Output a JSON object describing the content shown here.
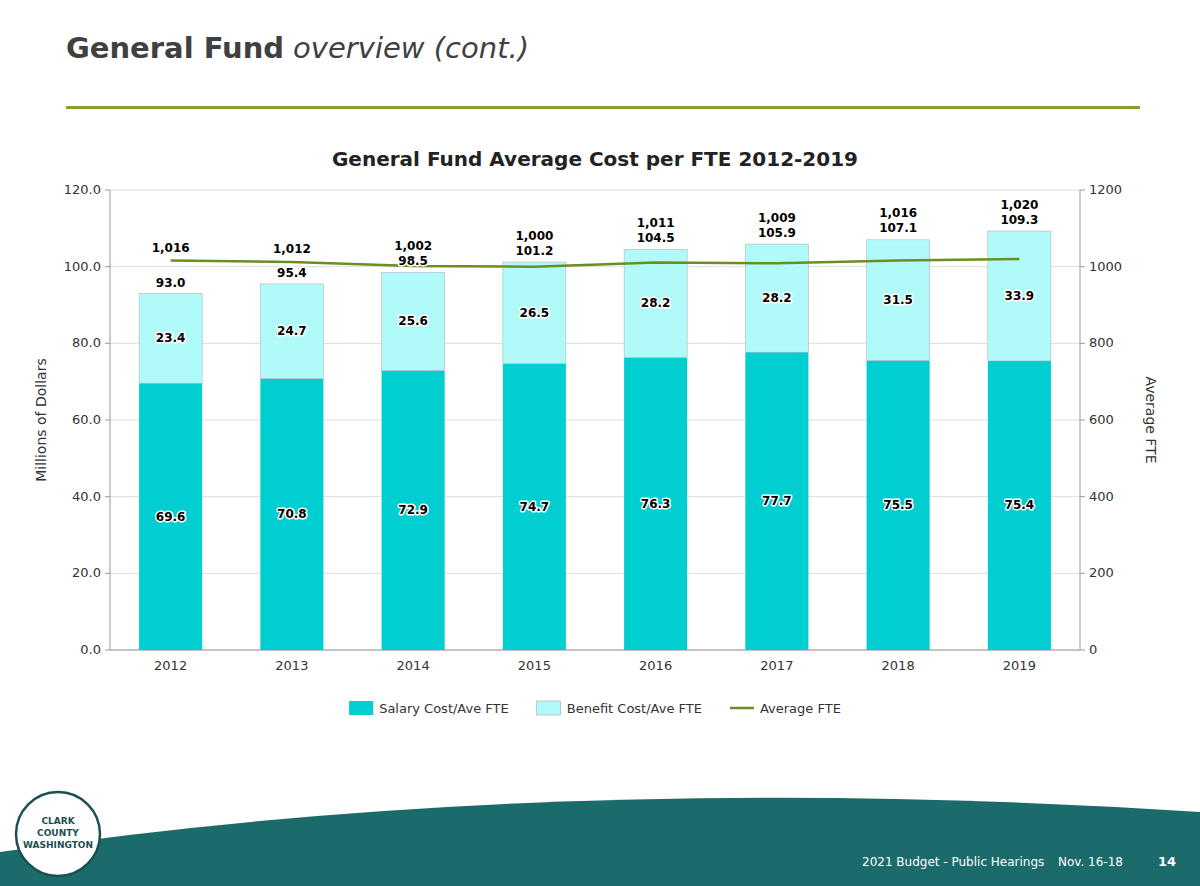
{
  "chart_data": {
    "type": "bar",
    "title": "General Fund Average Cost per FTE 2012-2019",
    "categories": [
      "2012",
      "2013",
      "2014",
      "2015",
      "2016",
      "2017",
      "2018",
      "2019"
    ],
    "stacked": true,
    "grid": true,
    "legend": "bottom",
    "data_labels": true,
    "ylabel": "Millions of Dollars",
    "y2label": "Average FTE",
    "ylim": [
      0,
      120
    ],
    "yticks": [
      {
        "value": 0,
        "label": "0.0"
      },
      {
        "value": 20,
        "label": "20.0"
      },
      {
        "value": 40,
        "label": "40.0"
      },
      {
        "value": 60,
        "label": "60.0"
      },
      {
        "value": 80,
        "label": "80.0"
      },
      {
        "value": 100,
        "label": "100.0"
      },
      {
        "value": 120,
        "label": "120.0"
      }
    ],
    "y2lim": [
      0,
      1200
    ],
    "y2ticks": [
      0,
      200,
      400,
      600,
      800,
      1000,
      1200
    ],
    "series": [
      {
        "name": "Salary Cost/Ave FTE",
        "type": "bar",
        "color": "#00CED1",
        "values": [
          69.6,
          70.8,
          72.9,
          74.7,
          76.3,
          77.7,
          75.5,
          75.4
        ]
      },
      {
        "name": "Benefit Cost/Ave FTE",
        "type": "bar",
        "color": "#B0FAFA",
        "values": [
          23.4,
          24.7,
          25.6,
          26.5,
          28.2,
          28.2,
          31.5,
          33.9
        ]
      },
      {
        "name": "Average FTE",
        "type": "line",
        "axis": "y2",
        "color": "#6B8E23",
        "values": [
          1016,
          1012,
          1002,
          1000,
          1011,
          1009,
          1016,
          1020
        ],
        "value_labels": [
          "1,016",
          "1,012",
          "1,002",
          "1,000",
          "1,011",
          "1,009",
          "1,016",
          "1,020"
        ]
      }
    ],
    "totals": [
      93.0,
      95.4,
      98.5,
      101.2,
      104.5,
      105.9,
      107.1,
      109.3
    ],
    "total_labels": [
      "93.0",
      "95.4",
      "98.5",
      "101.2",
      "104.5",
      "105.9",
      "107.1",
      "109.3"
    ],
    "annotations": [
      "General Fund",
      "overview (cont.)",
      "2021 Budget - Public Hearings",
      "Nov. 16-18",
      "14",
      "CLARK",
      "COUNTY",
      "WASHINGTON"
    ]
  }
}
